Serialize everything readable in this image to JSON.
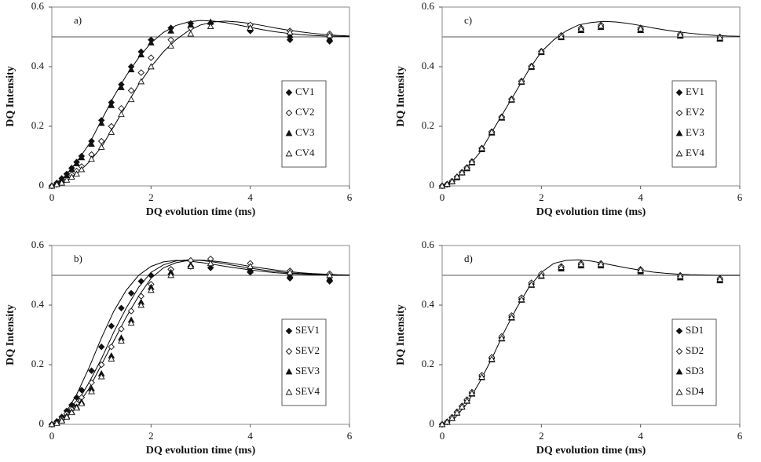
{
  "chart_data": [
    {
      "type": "scatter",
      "label": "a)",
      "xlabel": "DQ evolution time (ms)",
      "ylabel": "DQ Intensity",
      "xlim": [
        0,
        6
      ],
      "ylim": [
        0,
        0.6
      ],
      "xticks": [
        0,
        2,
        4,
        6
      ],
      "yticks": [
        0,
        0.2,
        0.4,
        0.6
      ],
      "hline": 0.5,
      "x": [
        0,
        0.1,
        0.2,
        0.3,
        0.4,
        0.5,
        0.6,
        0.8,
        1.0,
        1.2,
        1.4,
        1.6,
        1.8,
        2.0,
        2.4,
        2.8,
        3.2,
        4.0,
        4.8,
        5.6
      ],
      "series": [
        {
          "name": "CV1",
          "marker": "diamond-filled",
          "values": [
            0,
            0.01,
            0.025,
            0.04,
            0.06,
            0.08,
            0.1,
            0.15,
            0.22,
            0.28,
            0.34,
            0.4,
            0.45,
            0.49,
            0.53,
            0.545,
            0.545,
            0.52,
            0.49,
            0.485
          ]
        },
        {
          "name": "CV2",
          "marker": "diamond-open",
          "values": [
            0,
            0.005,
            0.012,
            0.025,
            0.038,
            0.05,
            0.065,
            0.105,
            0.15,
            0.2,
            0.26,
            0.32,
            0.38,
            0.43,
            0.49,
            0.53,
            0.545,
            0.54,
            0.52,
            0.51
          ]
        },
        {
          "name": "CV3",
          "marker": "triangle-filled",
          "values": [
            0,
            0.008,
            0.02,
            0.035,
            0.055,
            0.075,
            0.095,
            0.14,
            0.21,
            0.27,
            0.33,
            0.39,
            0.44,
            0.48,
            0.52,
            0.54,
            0.55,
            0.53,
            0.505,
            0.495
          ]
        },
        {
          "name": "CV4",
          "marker": "triangle-open",
          "values": [
            0,
            0.005,
            0.01,
            0.02,
            0.03,
            0.04,
            0.055,
            0.09,
            0.13,
            0.18,
            0.24,
            0.29,
            0.35,
            0.4,
            0.47,
            0.51,
            0.535,
            0.53,
            0.515,
            0.505
          ]
        }
      ],
      "fits": {
        "x": [
          0,
          0.25,
          0.5,
          0.75,
          1,
          1.25,
          1.5,
          1.75,
          2,
          2.25,
          2.5,
          2.75,
          3,
          3.25,
          3.5,
          3.75,
          4,
          4.25,
          4.5,
          4.75,
          5,
          5.25,
          5.5,
          5.75,
          6
        ],
        "series": [
          {
            "color": "#000000",
            "values": [
              0,
              0.03,
              0.08,
              0.14,
              0.22,
              0.3,
              0.37,
              0.43,
              0.48,
              0.515,
              0.538,
              0.55,
              0.555,
              0.553,
              0.548,
              0.54,
              0.532,
              0.524,
              0.517,
              0.512,
              0.508,
              0.505,
              0.503,
              0.502,
              0.501
            ]
          },
          {
            "color": "#000000",
            "values": [
              0,
              0.01,
              0.04,
              0.08,
              0.13,
              0.2,
              0.27,
              0.34,
              0.4,
              0.45,
              0.49,
              0.52,
              0.54,
              0.55,
              0.553,
              0.55,
              0.545,
              0.538,
              0.53,
              0.523,
              0.517,
              0.512,
              0.508,
              0.505,
              0.503
            ]
          }
        ]
      }
    },
    {
      "type": "scatter",
      "label": "c)",
      "xlabel": "DQ evolution time (ms)",
      "ylabel": "DQ Intensity",
      "xlim": [
        0,
        6
      ],
      "ylim": [
        0,
        0.6
      ],
      "xticks": [
        0,
        2,
        4,
        6
      ],
      "yticks": [
        0,
        0.2,
        0.4,
        0.6
      ],
      "hline": 0.5,
      "x": [
        0,
        0.1,
        0.2,
        0.3,
        0.4,
        0.5,
        0.6,
        0.8,
        1.0,
        1.2,
        1.4,
        1.6,
        1.8,
        2.0,
        2.4,
        2.8,
        3.2,
        4.0,
        4.8,
        5.6
      ],
      "series": [
        {
          "name": "EV1",
          "marker": "diamond-filled",
          "values": [
            0,
            0.005,
            0.015,
            0.03,
            0.045,
            0.06,
            0.08,
            0.125,
            0.18,
            0.23,
            0.29,
            0.35,
            0.4,
            0.45,
            0.5,
            0.525,
            0.535,
            0.525,
            0.505,
            0.495
          ]
        },
        {
          "name": "EV2",
          "marker": "diamond-open",
          "values": [
            0,
            0.006,
            0.016,
            0.03,
            0.046,
            0.062,
            0.082,
            0.127,
            0.182,
            0.232,
            0.292,
            0.352,
            0.402,
            0.452,
            0.505,
            0.53,
            0.54,
            0.53,
            0.51,
            0.5
          ]
        },
        {
          "name": "EV3",
          "marker": "triangle-filled",
          "values": [
            0,
            0.005,
            0.014,
            0.028,
            0.044,
            0.058,
            0.078,
            0.122,
            0.178,
            0.228,
            0.288,
            0.348,
            0.398,
            0.448,
            0.498,
            0.522,
            0.532,
            0.522,
            0.503,
            0.493
          ]
        },
        {
          "name": "EV4",
          "marker": "triangle-open",
          "values": [
            0,
            0.006,
            0.015,
            0.031,
            0.045,
            0.061,
            0.08,
            0.126,
            0.181,
            0.231,
            0.29,
            0.35,
            0.401,
            0.451,
            0.501,
            0.527,
            0.537,
            0.527,
            0.507,
            0.497
          ]
        }
      ],
      "fits": {
        "x": [
          0,
          0.25,
          0.5,
          0.75,
          1,
          1.25,
          1.5,
          1.75,
          2,
          2.25,
          2.5,
          2.75,
          3,
          3.25,
          3.5,
          3.75,
          4,
          4.25,
          4.5,
          4.75,
          5,
          5.25,
          5.5,
          5.75,
          6
        ],
        "series": [
          {
            "color": "#000000",
            "values": [
              0,
              0.02,
              0.06,
              0.11,
              0.18,
              0.25,
              0.32,
              0.39,
              0.45,
              0.49,
              0.52,
              0.54,
              0.548,
              0.552,
              0.55,
              0.545,
              0.538,
              0.53,
              0.523,
              0.517,
              0.512,
              0.508,
              0.505,
              0.503,
              0.502
            ]
          }
        ]
      }
    },
    {
      "type": "scatter",
      "label": "b)",
      "xlabel": "DQ evolution time (ms)",
      "ylabel": "DQ Intensity",
      "xlim": [
        0,
        6
      ],
      "ylim": [
        0,
        0.6
      ],
      "xticks": [
        0,
        2,
        4,
        6
      ],
      "yticks": [
        0,
        0.2,
        0.4,
        0.6
      ],
      "hline": 0.5,
      "x": [
        0,
        0.1,
        0.2,
        0.3,
        0.4,
        0.5,
        0.6,
        0.8,
        1.0,
        1.2,
        1.4,
        1.6,
        1.8,
        2.0,
        2.4,
        2.8,
        3.2,
        4.0,
        4.8,
        5.6
      ],
      "series": [
        {
          "name": "SEV1",
          "marker": "diamond-filled",
          "values": [
            0,
            0.01,
            0.025,
            0.045,
            0.065,
            0.09,
            0.115,
            0.18,
            0.26,
            0.33,
            0.39,
            0.44,
            0.48,
            0.5,
            0.52,
            0.53,
            0.525,
            0.51,
            0.49,
            0.48
          ]
        },
        {
          "name": "SEV2",
          "marker": "diamond-open",
          "values": [
            0,
            0.006,
            0.018,
            0.035,
            0.05,
            0.07,
            0.09,
            0.14,
            0.2,
            0.26,
            0.32,
            0.38,
            0.43,
            0.47,
            0.52,
            0.55,
            0.555,
            0.54,
            0.515,
            0.505
          ]
        },
        {
          "name": "SEV3",
          "marker": "triangle-filled",
          "values": [
            0,
            0.005,
            0.014,
            0.028,
            0.042,
            0.058,
            0.075,
            0.12,
            0.17,
            0.23,
            0.29,
            0.35,
            0.41,
            0.46,
            0.51,
            0.535,
            0.54,
            0.52,
            0.5,
            0.49
          ]
        },
        {
          "name": "SEV4",
          "marker": "triangle-open",
          "values": [
            0,
            0.004,
            0.012,
            0.025,
            0.04,
            0.055,
            0.07,
            0.11,
            0.16,
            0.22,
            0.28,
            0.34,
            0.4,
            0.45,
            0.5,
            0.53,
            0.54,
            0.53,
            0.51,
            0.5
          ]
        }
      ],
      "fits": {
        "x": [
          0,
          0.25,
          0.5,
          0.75,
          1,
          1.25,
          1.5,
          1.75,
          2,
          2.25,
          2.5,
          2.75,
          3,
          3.25,
          3.5,
          3.75,
          4,
          4.25,
          4.5,
          4.75,
          5,
          5.25,
          5.5,
          5.75,
          6
        ],
        "series": [
          {
            "color": "#000000",
            "values": [
              0,
              0.03,
              0.1,
              0.19,
              0.29,
              0.38,
              0.45,
              0.5,
              0.53,
              0.545,
              0.55,
              0.548,
              0.543,
              0.537,
              0.53,
              0.524,
              0.518,
              0.513,
              0.509,
              0.506,
              0.504,
              0.502,
              0.501,
              0.5,
              0.5
            ]
          },
          {
            "color": "#000000",
            "values": [
              0,
              0.02,
              0.07,
              0.14,
              0.22,
              0.31,
              0.39,
              0.46,
              0.51,
              0.535,
              0.548,
              0.552,
              0.55,
              0.545,
              0.538,
              0.531,
              0.524,
              0.518,
              0.513,
              0.509,
              0.506,
              0.504,
              0.502,
              0.501,
              0.5
            ]
          },
          {
            "color": "#000000",
            "values": [
              0,
              0.015,
              0.06,
              0.12,
              0.2,
              0.28,
              0.36,
              0.43,
              0.49,
              0.525,
              0.542,
              0.55,
              0.551,
              0.548,
              0.543,
              0.537,
              0.53,
              0.524,
              0.518,
              0.513,
              0.509,
              0.506,
              0.504,
              0.502,
              0.501
            ]
          }
        ]
      }
    },
    {
      "type": "scatter",
      "label": "d)",
      "xlabel": "DQ evolution time (ms)",
      "ylabel": "DQ Intensity",
      "xlim": [
        0,
        6
      ],
      "ylim": [
        0,
        0.6
      ],
      "xticks": [
        0,
        2,
        4,
        6
      ],
      "yticks": [
        0,
        0.2,
        0.4,
        0.6
      ],
      "hline": 0.5,
      "x": [
        0,
        0.1,
        0.2,
        0.3,
        0.4,
        0.5,
        0.6,
        0.8,
        1.0,
        1.2,
        1.4,
        1.6,
        1.8,
        2.0,
        2.4,
        2.8,
        3.2,
        4.0,
        4.8,
        5.6
      ],
      "series": [
        {
          "name": "SD1",
          "marker": "diamond-filled",
          "values": [
            0,
            0.008,
            0.022,
            0.04,
            0.06,
            0.08,
            0.105,
            0.16,
            0.22,
            0.29,
            0.36,
            0.42,
            0.47,
            0.5,
            0.525,
            0.535,
            0.535,
            0.515,
            0.495,
            0.485
          ]
        },
        {
          "name": "SD2",
          "marker": "diamond-open",
          "values": [
            0,
            0.009,
            0.024,
            0.042,
            0.062,
            0.083,
            0.108,
            0.165,
            0.225,
            0.295,
            0.365,
            0.425,
            0.475,
            0.505,
            0.53,
            0.54,
            0.54,
            0.52,
            0.5,
            0.49
          ]
        },
        {
          "name": "SD3",
          "marker": "triangle-filled",
          "values": [
            0,
            0.007,
            0.02,
            0.038,
            0.058,
            0.078,
            0.102,
            0.157,
            0.217,
            0.287,
            0.357,
            0.417,
            0.467,
            0.497,
            0.522,
            0.532,
            0.532,
            0.512,
            0.492,
            0.482
          ]
        },
        {
          "name": "SD4",
          "marker": "triangle-open",
          "values": [
            0,
            0.008,
            0.021,
            0.039,
            0.059,
            0.079,
            0.104,
            0.159,
            0.219,
            0.289,
            0.359,
            0.419,
            0.469,
            0.499,
            0.527,
            0.537,
            0.537,
            0.517,
            0.497,
            0.487
          ]
        }
      ],
      "fits": {
        "x": [
          0,
          0.25,
          0.5,
          0.75,
          1,
          1.25,
          1.5,
          1.75,
          2,
          2.25,
          2.5,
          2.75,
          3,
          3.25,
          3.5,
          3.75,
          4,
          4.25,
          4.5,
          4.75,
          5,
          5.25,
          5.5,
          5.75,
          6
        ],
        "series": [
          {
            "color": "#000000",
            "values": [
              0,
              0.02,
              0.07,
              0.14,
              0.22,
              0.31,
              0.39,
              0.46,
              0.51,
              0.54,
              0.55,
              0.552,
              0.548,
              0.54,
              0.532,
              0.524,
              0.517,
              0.511,
              0.507,
              0.504,
              0.502,
              0.501,
              0.5,
              0.5,
              0.5
            ]
          }
        ]
      }
    }
  ]
}
